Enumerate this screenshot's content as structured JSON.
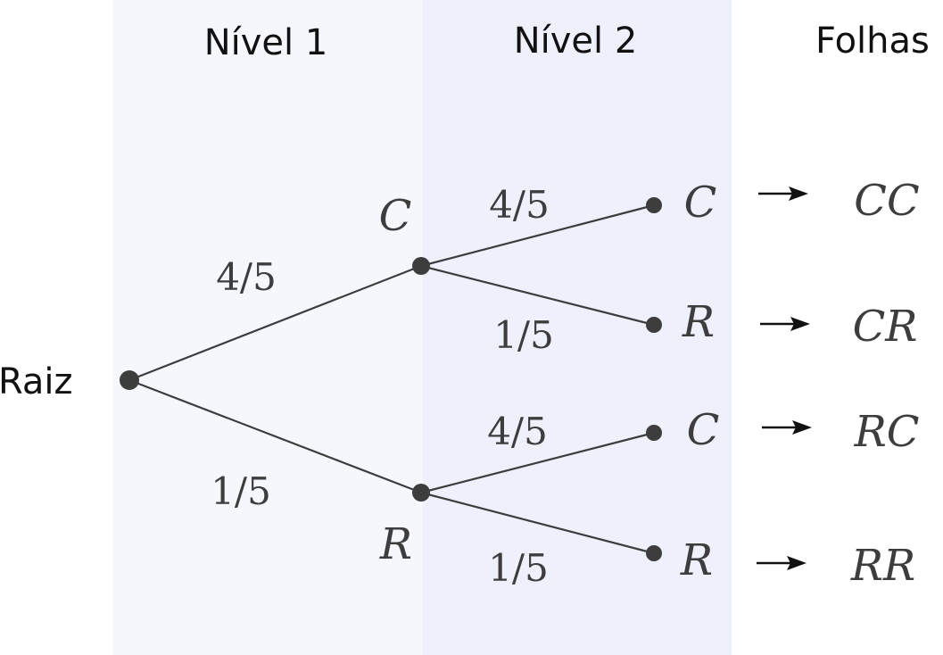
{
  "headers": {
    "level1": "Nível 1",
    "level2": "Nível 2",
    "leaves": "Folhas"
  },
  "root": {
    "label": "Raiz"
  },
  "level1_nodes": [
    {
      "label": "C",
      "edge_prob": "4/5"
    },
    {
      "label": "R",
      "edge_prob": "1/5"
    }
  ],
  "level2_nodes": [
    {
      "label": "C",
      "edge_prob": "4/5"
    },
    {
      "label": "R",
      "edge_prob": "1/5"
    },
    {
      "label": "C",
      "edge_prob": "4/5"
    },
    {
      "label": "R",
      "edge_prob": "1/5"
    }
  ],
  "leaves": [
    "CC",
    "CR",
    "RC",
    "RR"
  ],
  "colors": {
    "band_level1": "#f5f7fd",
    "band_level2": "#eef1fc",
    "ink": "#3d3d3d",
    "text": "#111111"
  }
}
